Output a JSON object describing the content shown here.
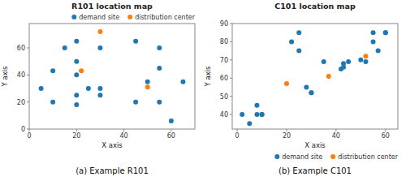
{
  "chart_data": [
    {
      "type": "scatter",
      "title": "R101 location map",
      "xlabel": "X axis",
      "ylabel": "Y axis",
      "annotations": [
        "(a) Example R101"
      ],
      "series": [
        {
          "name": "demand site",
          "color": "#1f77b4",
          "marker": "circle",
          "x": [
            5,
            10,
            10,
            15,
            20,
            20,
            20,
            20,
            20,
            25,
            30,
            30,
            30,
            45,
            45,
            50,
            55,
            55,
            55,
            60,
            65
          ],
          "values": [
            30,
            43,
            20,
            60,
            65,
            50,
            40,
            25,
            18,
            30,
            60,
            25,
            30,
            65,
            20,
            35,
            60,
            45,
            20,
            6,
            35
          ]
        },
        {
          "name": "distribution center",
          "color": "#ff7f0e",
          "marker": "circle",
          "x": [
            30,
            22,
            50
          ],
          "values": [
            72,
            43,
            31
          ]
        }
      ],
      "xlim": [
        0,
        70
      ],
      "ylim": [
        0,
        78
      ],
      "xticks": [
        0,
        20,
        40,
        60
      ],
      "yticks": [
        0,
        20,
        40,
        60
      ],
      "grid": false,
      "legend": "upper right"
    },
    {
      "type": "scatter",
      "title": "C101 location map",
      "xlabel": "X axis",
      "ylabel": "Y axis",
      "annotations": [
        "(b) Example C101"
      ],
      "series": [
        {
          "name": "demand site",
          "color": "#1f77b4",
          "marker": "circle",
          "x": [
            2,
            5,
            8,
            8,
            10,
            10,
            22,
            25,
            25,
            28,
            30,
            30,
            35,
            42,
            43,
            43,
            45,
            50,
            52,
            55,
            55,
            57,
            60,
            60
          ],
          "values": [
            40,
            35,
            45,
            40,
            40,
            40,
            80,
            75,
            85,
            55,
            52,
            52,
            69,
            65,
            66,
            68,
            69,
            70,
            69,
            85,
            80,
            75,
            85,
            85
          ]
        },
        {
          "name": "distribution center",
          "color": "#ff7f0e",
          "marker": "circle",
          "x": [
            20,
            37,
            52
          ],
          "values": [
            57,
            61,
            72
          ]
        }
      ],
      "xlim": [
        -2,
        65
      ],
      "ylim": [
        32,
        90
      ],
      "xticks": [
        0,
        20,
        40,
        60
      ],
      "yticks": [
        40,
        50,
        60,
        70,
        80,
        90
      ],
      "grid": false,
      "legend": "lower right"
    }
  ]
}
